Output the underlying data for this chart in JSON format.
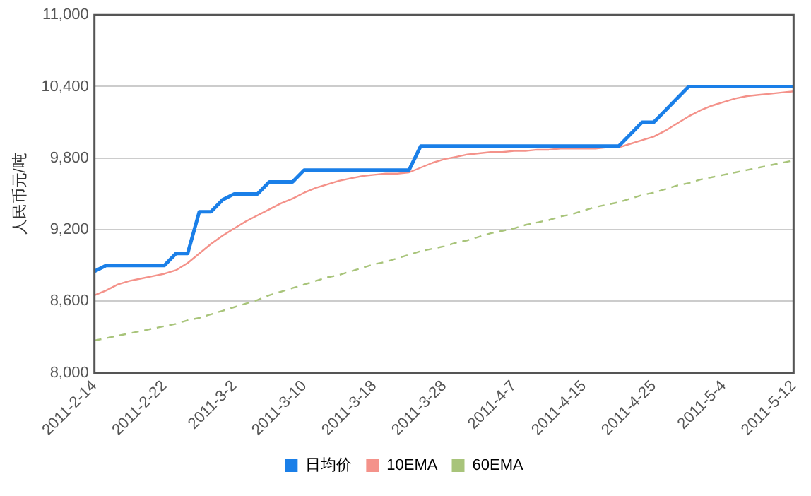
{
  "chart_data": {
    "type": "line",
    "ylabel": "人民币元/吨",
    "categories": [
      "2011-2-14",
      null,
      null,
      null,
      null,
      null,
      "2011-2-22",
      null,
      null,
      null,
      null,
      null,
      "2011-3-2",
      null,
      null,
      null,
      null,
      null,
      "2011-3-10",
      null,
      null,
      null,
      null,
      null,
      "2011-3-18",
      null,
      null,
      null,
      null,
      null,
      "2011-3-28",
      null,
      null,
      null,
      null,
      null,
      "2011-4-7",
      null,
      null,
      null,
      null,
      null,
      "2011-4-15",
      null,
      null,
      null,
      null,
      null,
      "2011-4-25",
      null,
      null,
      null,
      null,
      null,
      "2011-5-4",
      null,
      null,
      null,
      null,
      null,
      "2011-5-12"
    ],
    "series": [
      {
        "name": "日均价",
        "color": "#1a7fe8",
        "values": [
          8850,
          8900,
          8900,
          8900,
          8900,
          8900,
          8900,
          9000,
          9000,
          9350,
          9350,
          9450,
          9500,
          9500,
          9500,
          9600,
          9600,
          9600,
          9700,
          9700,
          9700,
          9700,
          9700,
          9700,
          9700,
          9700,
          9700,
          9700,
          9900,
          9900,
          9900,
          9900,
          9900,
          9900,
          9900,
          9900,
          9900,
          9900,
          9900,
          9900,
          9900,
          9900,
          9900,
          9900,
          9900,
          9900,
          10000,
          10100,
          10100,
          10200,
          10300,
          10400,
          10400,
          10400,
          10400,
          10400,
          10400,
          10400,
          10400,
          10400,
          10400
        ]
      },
      {
        "name": "10EMA",
        "color": "#f4928a",
        "values": [
          8650,
          8690,
          8740,
          8770,
          8790,
          8810,
          8830,
          8860,
          8920,
          9000,
          9080,
          9150,
          9210,
          9270,
          9320,
          9370,
          9420,
          9460,
          9510,
          9550,
          9580,
          9610,
          9630,
          9650,
          9660,
          9670,
          9670,
          9680,
          9720,
          9760,
          9790,
          9810,
          9830,
          9840,
          9850,
          9850,
          9860,
          9860,
          9870,
          9870,
          9880,
          9880,
          9880,
          9880,
          9890,
          9890,
          9920,
          9950,
          9980,
          10030,
          10090,
          10150,
          10200,
          10240,
          10270,
          10300,
          10320,
          10330,
          10340,
          10350,
          10360
        ]
      },
      {
        "name": "60EMA",
        "color": "#a8c47a",
        "line_style": "dashed",
        "values": [
          8270,
          8290,
          8310,
          8330,
          8350,
          8370,
          8390,
          8410,
          8440,
          8460,
          8490,
          8520,
          8550,
          8580,
          8610,
          8650,
          8680,
          8710,
          8740,
          8770,
          8800,
          8820,
          8850,
          8880,
          8910,
          8930,
          8960,
          8990,
          9020,
          9040,
          9060,
          9090,
          9110,
          9140,
          9170,
          9190,
          9210,
          9240,
          9260,
          9280,
          9310,
          9330,
          9360,
          9390,
          9410,
          9430,
          9460,
          9490,
          9510,
          9540,
          9570,
          9590,
          9620,
          9640,
          9660,
          9680,
          9700,
          9720,
          9740,
          9760,
          9780
        ]
      }
    ],
    "ylim": [
      8000,
      11000
    ],
    "yticks": [
      {
        "value": 8000,
        "label": "8,000"
      },
      {
        "value": 8600,
        "label": "8,600"
      },
      {
        "value": 9200,
        "label": "9,200"
      },
      {
        "value": 9800,
        "label": "9,800"
      },
      {
        "value": 10400,
        "label": "10,400"
      },
      {
        "value": 11000,
        "label": "11,000"
      }
    ],
    "grid": "y",
    "legend": "bottom",
    "marker": "none"
  }
}
